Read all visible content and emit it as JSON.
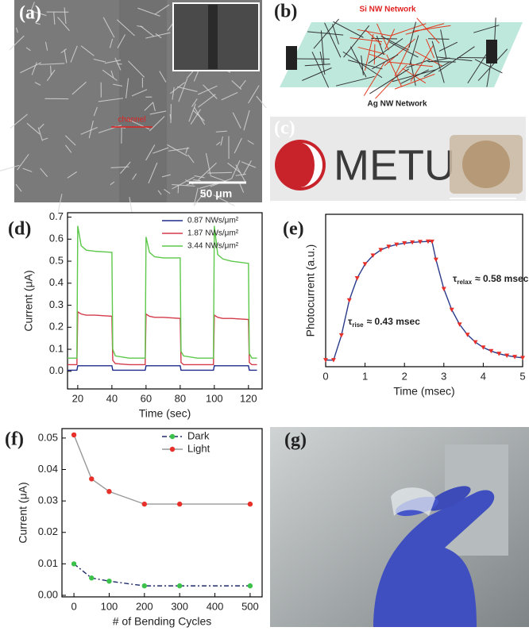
{
  "panels": {
    "a": "(a)",
    "b": "(b)",
    "c": "(c)",
    "d": "(d)",
    "e": "(e)",
    "f": "(f)",
    "g": "(g)"
  },
  "panel_a": {
    "channel": "channel",
    "scale": "50 μm"
  },
  "panel_b": {
    "si_label": "Si NW Network",
    "ag_label": "Ag NW Network"
  },
  "panel_c": {
    "logo_text": "METU"
  },
  "chart_data": [
    {
      "type": "line",
      "xlabel": "Time (sec)",
      "ylabel": "Current (μA)",
      "xlim": [
        14,
        128
      ],
      "ylim": [
        -0.08,
        0.72
      ],
      "xticks": [
        20,
        40,
        60,
        80,
        100,
        120
      ],
      "yticks": [
        {
          "value": 0,
          "label": "0.0"
        },
        0.1,
        0.2,
        0.3,
        0.4,
        0.5,
        0.6,
        0.7
      ],
      "legend": "upper right",
      "x": [
        14,
        19.5,
        20,
        22,
        25,
        30,
        40,
        40.5,
        42,
        50,
        59.5,
        60,
        62,
        65,
        70,
        80,
        80.5,
        82,
        90,
        99.5,
        100,
        102,
        105,
        110,
        120,
        120.5,
        122,
        125
      ],
      "series": [
        {
          "name": "0.87 NWs/μm²",
          "color": "#1f2a8a",
          "values": [
            0.005,
            0.005,
            0.025,
            0.025,
            0.025,
            0.025,
            0.025,
            0.005,
            0.005,
            0.005,
            0.005,
            0.025,
            0.025,
            0.025,
            0.025,
            0.025,
            0.005,
            0.005,
            0.005,
            0.005,
            0.025,
            0.025,
            0.025,
            0.025,
            0.025,
            0.005,
            0.005,
            0.005
          ]
        },
        {
          "name": "1.87 NWs/μm²",
          "color": "#d43a4a",
          "values": [
            0.03,
            0.03,
            0.27,
            0.26,
            0.255,
            0.255,
            0.25,
            0.05,
            0.035,
            0.03,
            0.03,
            0.26,
            0.25,
            0.245,
            0.245,
            0.24,
            0.04,
            0.03,
            0.03,
            0.03,
            0.255,
            0.245,
            0.24,
            0.24,
            0.235,
            0.04,
            0.03,
            0.03
          ]
        },
        {
          "name": "3.44 NWs/μm²",
          "color": "#5cc84a",
          "values": [
            0.06,
            0.06,
            0.66,
            0.57,
            0.55,
            0.545,
            0.54,
            0.1,
            0.07,
            0.06,
            0.06,
            0.61,
            0.54,
            0.52,
            0.515,
            0.515,
            0.09,
            0.07,
            0.06,
            0.06,
            0.66,
            0.53,
            0.51,
            0.5,
            0.49,
            0.08,
            0.06,
            0.06
          ]
        }
      ]
    },
    {
      "type": "line",
      "xlabel": "Time (msec)",
      "ylabel": "Photocurrent (a.u.)",
      "xlim": [
        0,
        5
      ],
      "ylim": [
        0.05,
        1.2
      ],
      "xticks": [
        0,
        1,
        2,
        3,
        4,
        5
      ],
      "x": [
        0,
        0.2,
        0.4,
        0.6,
        0.8,
        1.0,
        1.2,
        1.4,
        1.6,
        1.8,
        2.0,
        2.2,
        2.4,
        2.6,
        2.7,
        2.8,
        3.0,
        3.2,
        3.4,
        3.6,
        3.8,
        4.0,
        4.2,
        4.4,
        4.6,
        4.8,
        5.0
      ],
      "series": [
        {
          "color": "#e8302a",
          "line_color": "#2a3a8a",
          "marker": "triangle",
          "values": [
            0.1,
            0.1,
            0.287,
            0.552,
            0.718,
            0.824,
            0.889,
            0.931,
            0.956,
            0.972,
            0.982,
            0.988,
            0.992,
            0.995,
            0.994,
            0.858,
            0.637,
            0.48,
            0.369,
            0.291,
            0.235,
            0.195,
            0.168,
            0.148,
            0.134,
            0.124,
            0.117
          ]
        }
      ],
      "annotations": [
        {
          "symbol": "τ",
          "sub": "rise",
          "text": "≈ 0.43 msec"
        },
        {
          "symbol": "τ",
          "sub": "relax",
          "text": "≈ 0.58 msec"
        }
      ]
    },
    {
      "type": "line",
      "xlabel": "# of Bending Cycles",
      "ylabel": "Current (μA)",
      "xlim": [
        -34,
        534
      ],
      "ylim": [
        -0.0005,
        0.053
      ],
      "xticks": [
        0,
        100,
        200,
        300,
        400,
        500
      ],
      "yticks": [
        {
          "value": 0,
          "label": "0.00"
        },
        {
          "value": 0.01,
          "label": "0.01"
        },
        {
          "value": 0.02,
          "label": "0.02"
        },
        {
          "value": 0.03,
          "label": "0.03"
        },
        {
          "value": 0.04,
          "label": "0.04"
        },
        {
          "value": 0.05,
          "label": "0.05"
        }
      ],
      "legend": "upper right",
      "x": [
        0,
        50,
        100,
        200,
        300,
        500
      ],
      "series": [
        {
          "name": "Dark",
          "color": "#3cc24a",
          "line_color": "#1f2a6a",
          "linestyle": "dashdot",
          "marker": "circle",
          "values": [
            0.01,
            0.0055,
            0.0045,
            0.003,
            0.003,
            0.003
          ]
        },
        {
          "name": "Light",
          "color": "#e8302a",
          "line_color": "#999999",
          "marker": "circle",
          "values": [
            0.051,
            0.037,
            0.033,
            0.029,
            0.029,
            0.029
          ]
        }
      ]
    }
  ]
}
